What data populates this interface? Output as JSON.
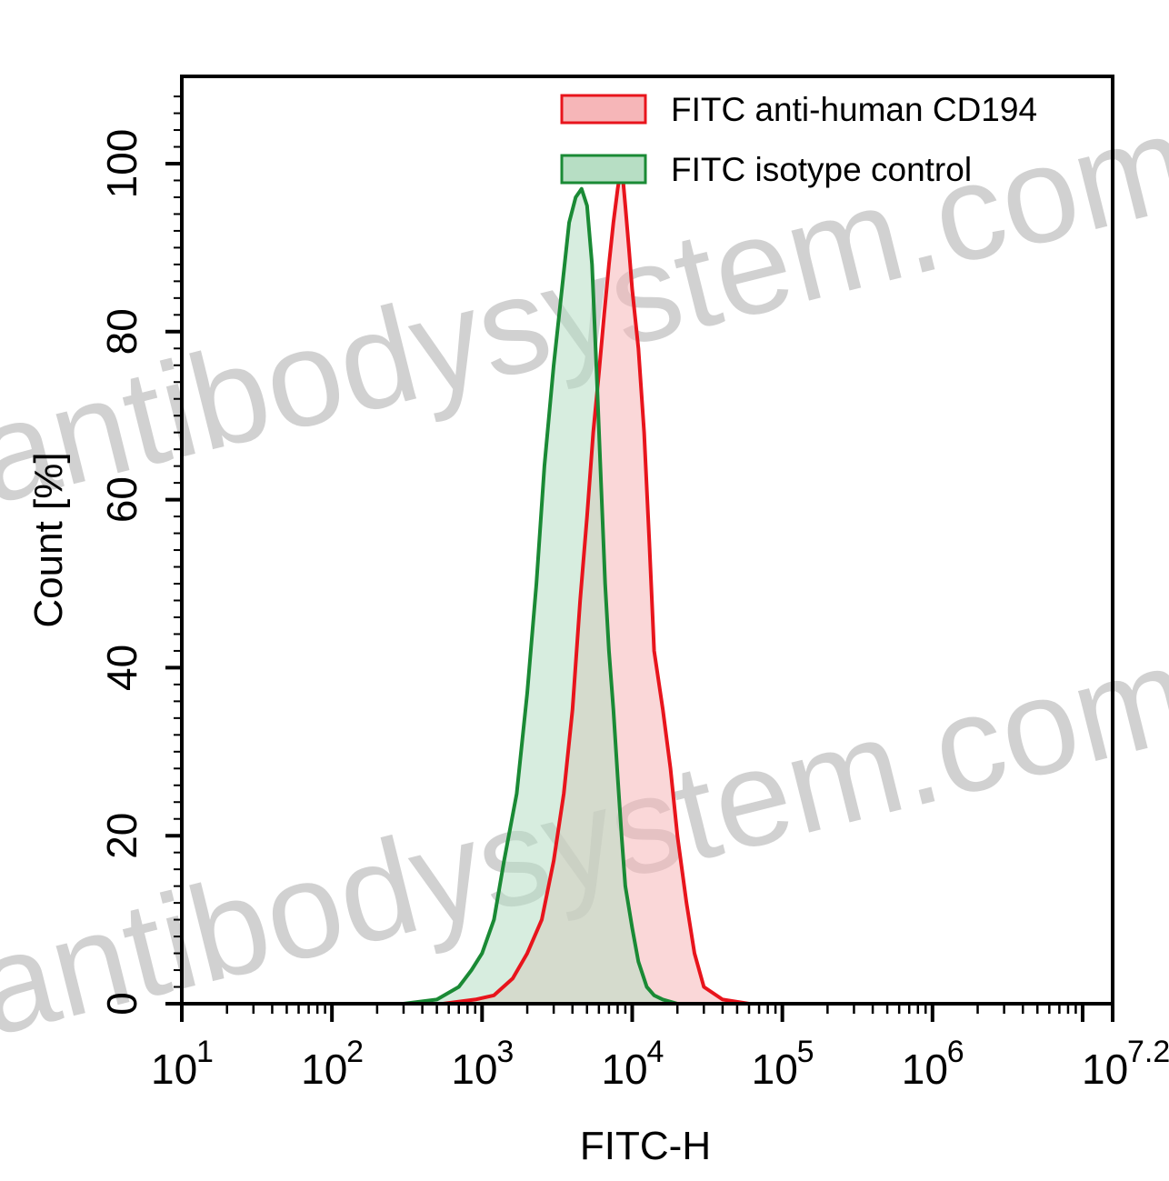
{
  "colors": {
    "anti_human": "#e8141c",
    "anti_human_fill": "#f6b6b8",
    "isotype": "#1a8a35",
    "isotype_fill": "#b7dec4",
    "overlap_fill": "#c9b8a0"
  },
  "watermark": {
    "text_1": "antibodysystem.com",
    "text_2": "antibodysystem.com"
  },
  "chart_data": {
    "type": "area",
    "xlabel": "FITC-H",
    "ylabel": "Count  [%]",
    "x_scale": "log10",
    "xlim": [
      10,
      15848932
    ],
    "ylim": [
      0,
      100
    ],
    "x_ticks": [
      {
        "base": "10",
        "exp": "1"
      },
      {
        "base": "10",
        "exp": "2"
      },
      {
        "base": "10",
        "exp": "3"
      },
      {
        "base": "10",
        "exp": "4"
      },
      {
        "base": "10",
        "exp": "5"
      },
      {
        "base": "10",
        "exp": "6"
      },
      {
        "base": "10",
        "exp": "7.2"
      }
    ],
    "y_ticks": [
      "0",
      "20",
      "40",
      "60",
      "80",
      "100"
    ],
    "legend_position": "top-right",
    "series": [
      {
        "name": "FITC anti-human CD194",
        "color": "#e8141c",
        "x": [
          550,
          900,
          1200,
          1600,
          2000,
          2500,
          3000,
          3500,
          4000,
          4500,
          5000,
          5500,
          6000,
          6500,
          7000,
          7500,
          8000,
          8500,
          9000,
          9500,
          10000,
          11000,
          12000,
          13000,
          14000,
          16000,
          18000,
          20000,
          23000,
          26000,
          30000,
          40000,
          60000
        ],
        "y": [
          0,
          0.5,
          1,
          3,
          6,
          10,
          17,
          25,
          35,
          48,
          58,
          68,
          75,
          82,
          88,
          93,
          97,
          100,
          95,
          90,
          85,
          78,
          68,
          55,
          42,
          35,
          28,
          20,
          12,
          6,
          2,
          0.5,
          0
        ]
      },
      {
        "name": "FITC isotype control",
        "color": "#1a8a35",
        "x": [
          300,
          500,
          700,
          850,
          1000,
          1200,
          1400,
          1700,
          2000,
          2300,
          2600,
          3000,
          3400,
          3800,
          4200,
          4600,
          5000,
          5400,
          5800,
          6200,
          6600,
          7000,
          7500,
          8000,
          8500,
          9000,
          10000,
          11000,
          12500,
          14000,
          16000,
          20000
        ],
        "y": [
          0,
          0.5,
          2,
          4,
          6,
          10,
          17,
          25,
          37,
          50,
          64,
          76,
          85,
          93,
          96,
          97,
          95,
          88,
          75,
          62,
          50,
          42,
          35,
          27,
          20,
          14,
          9,
          5,
          2,
          1,
          0.5,
          0
        ]
      }
    ]
  }
}
